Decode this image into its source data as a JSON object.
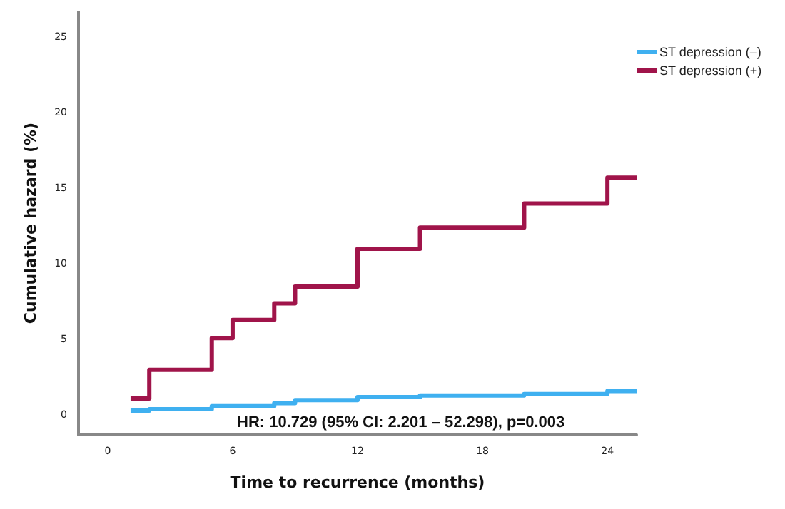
{
  "chart_data": {
    "type": "step",
    "xlabel": "Time to recurrence (months)",
    "ylabel": "Cumulative hazard (%)",
    "xlim": [
      -1.4,
      25.4
    ],
    "ylim": [
      -1.3,
      26.7
    ],
    "xticks": [
      0,
      6,
      12,
      18,
      24
    ],
    "yticks": [
      0,
      5,
      10,
      15,
      20,
      25
    ],
    "grid": false,
    "legend": "top right",
    "marker": "none",
    "line_style": "solid",
    "annotations": [
      "HR: 10.729 (95% CI: 2.201 – 52.298), p=0.003"
    ],
    "series": [
      {
        "name": "ST depression (–)",
        "color": "#3fb0f0",
        "x": [
          1.1,
          2,
          5,
          8,
          9,
          12,
          15,
          20,
          24,
          25.4
        ],
        "values": [
          0.3,
          0.4,
          0.6,
          0.8,
          1.0,
          1.2,
          1.3,
          1.4,
          1.6,
          1.6
        ]
      },
      {
        "name": "ST depression (+)",
        "color": "#a0144a",
        "x": [
          1.1,
          2,
          5,
          6,
          8,
          9,
          12,
          15,
          20,
          24,
          25.4
        ],
        "values": [
          1.1,
          3.0,
          5.1,
          6.3,
          7.4,
          8.5,
          11.0,
          12.4,
          14.0,
          15.7,
          15.7
        ]
      }
    ]
  }
}
